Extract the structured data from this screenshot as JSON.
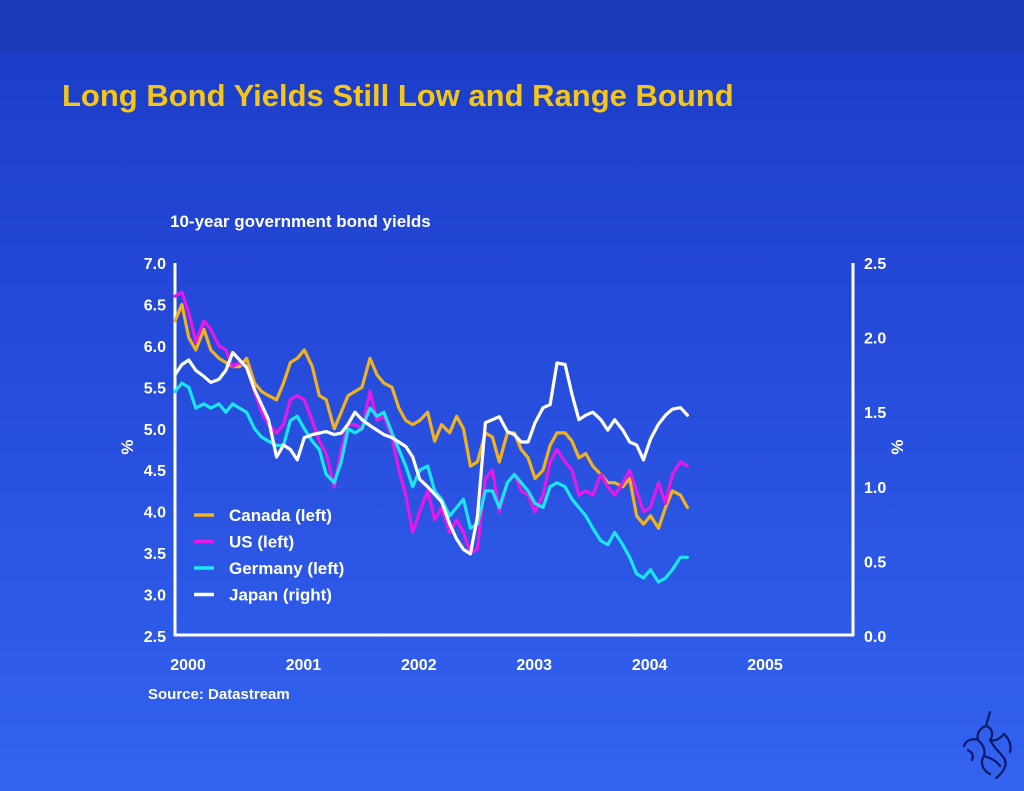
{
  "slide": {
    "title": "Long Bond Yields Still Low and Range Bound"
  },
  "source": "Source: Datastream",
  "colors": {
    "canada": "#f0b21e",
    "us": "#e619e6",
    "germany": "#19e6f0",
    "japan": "#ffffff",
    "title": "#f5c518"
  },
  "icons": {
    "logo": "unicorn-logo-icon"
  },
  "chart_data": {
    "type": "line",
    "title": "10-year government bond yields",
    "left_axis": {
      "label": "%",
      "range": [
        2.5,
        7.0
      ],
      "ticks": [
        "7.0",
        "6.5",
        "6.0",
        "5.5",
        "5.0",
        "4.5",
        "4.0",
        "3.5",
        "3.0",
        "2.5"
      ]
    },
    "right_axis": {
      "label": "%",
      "range": [
        0.0,
        2.5
      ],
      "ticks": [
        "2.5",
        "2.0",
        "1.5",
        "1.0",
        "0.5",
        "0.0"
      ]
    },
    "x_axis": {
      "range": [
        2000.0,
        2005.875
      ],
      "ticks": [
        "2000",
        "2001",
        "2002",
        "2003",
        "2004",
        "2005"
      ]
    },
    "grid": false,
    "legend_position": "bottom-left",
    "series": [
      {
        "name": "Canada (left)",
        "key": "canada",
        "axis": "left",
        "points": [
          [
            2000.0,
            6.3
          ],
          [
            2000.06,
            6.5
          ],
          [
            2000.12,
            6.1
          ],
          [
            2000.18,
            5.95
          ],
          [
            2000.25,
            6.2
          ],
          [
            2000.31,
            5.95
          ],
          [
            2000.38,
            5.85
          ],
          [
            2000.44,
            5.8
          ],
          [
            2000.5,
            5.75
          ],
          [
            2000.56,
            5.75
          ],
          [
            2000.62,
            5.85
          ],
          [
            2000.69,
            5.55
          ],
          [
            2000.75,
            5.45
          ],
          [
            2000.81,
            5.4
          ],
          [
            2000.88,
            5.35
          ],
          [
            2000.94,
            5.55
          ],
          [
            2001.0,
            5.8
          ],
          [
            2001.06,
            5.85
          ],
          [
            2001.12,
            5.95
          ],
          [
            2001.19,
            5.75
          ],
          [
            2001.25,
            5.4
          ],
          [
            2001.31,
            5.35
          ],
          [
            2001.38,
            5.0
          ],
          [
            2001.44,
            5.2
          ],
          [
            2001.5,
            5.4
          ],
          [
            2001.56,
            5.45
          ],
          [
            2001.62,
            5.5
          ],
          [
            2001.69,
            5.85
          ],
          [
            2001.75,
            5.65
          ],
          [
            2001.81,
            5.55
          ],
          [
            2001.88,
            5.5
          ],
          [
            2001.94,
            5.25
          ],
          [
            2002.0,
            5.1
          ],
          [
            2002.06,
            5.05
          ],
          [
            2002.12,
            5.1
          ],
          [
            2002.19,
            5.2
          ],
          [
            2002.25,
            4.85
          ],
          [
            2002.31,
            5.05
          ],
          [
            2002.38,
            4.95
          ],
          [
            2002.44,
            5.15
          ],
          [
            2002.5,
            5.0
          ],
          [
            2002.56,
            4.55
          ],
          [
            2002.62,
            4.6
          ],
          [
            2002.69,
            4.95
          ],
          [
            2002.75,
            4.9
          ],
          [
            2002.81,
            4.6
          ],
          [
            2002.88,
            4.95
          ],
          [
            2002.94,
            4.95
          ],
          [
            2003.0,
            4.75
          ],
          [
            2003.06,
            4.65
          ],
          [
            2003.12,
            4.4
          ],
          [
            2003.19,
            4.5
          ],
          [
            2003.25,
            4.8
          ],
          [
            2003.31,
            4.95
          ],
          [
            2003.38,
            4.95
          ],
          [
            2003.44,
            4.85
          ],
          [
            2003.5,
            4.65
          ],
          [
            2003.56,
            4.7
          ],
          [
            2003.62,
            4.55
          ],
          [
            2003.69,
            4.45
          ],
          [
            2003.75,
            4.35
          ],
          [
            2003.81,
            4.35
          ],
          [
            2003.88,
            4.3
          ],
          [
            2003.94,
            4.4
          ],
          [
            2004.0,
            3.95
          ],
          [
            2004.06,
            3.85
          ],
          [
            2004.12,
            3.95
          ],
          [
            2004.19,
            3.8
          ],
          [
            2004.25,
            4.05
          ],
          [
            2004.31,
            4.25
          ],
          [
            2004.38,
            4.2
          ],
          [
            2004.44,
            4.05
          ]
        ]
      },
      {
        "name": "US (left)",
        "key": "us",
        "axis": "left",
        "points": [
          [
            2000.0,
            6.6
          ],
          [
            2000.06,
            6.65
          ],
          [
            2000.12,
            6.4
          ],
          [
            2000.18,
            6.05
          ],
          [
            2000.25,
            6.3
          ],
          [
            2000.31,
            6.2
          ],
          [
            2000.38,
            6.0
          ],
          [
            2000.44,
            5.95
          ],
          [
            2000.5,
            5.75
          ],
          [
            2000.56,
            5.8
          ],
          [
            2000.62,
            5.75
          ],
          [
            2000.69,
            5.45
          ],
          [
            2000.75,
            5.2
          ],
          [
            2000.81,
            5.05
          ],
          [
            2000.88,
            4.95
          ],
          [
            2000.94,
            5.05
          ],
          [
            2001.0,
            5.35
          ],
          [
            2001.06,
            5.4
          ],
          [
            2001.12,
            5.35
          ],
          [
            2001.19,
            5.1
          ],
          [
            2001.25,
            4.85
          ],
          [
            2001.31,
            4.7
          ],
          [
            2001.38,
            4.3
          ],
          [
            2001.44,
            4.75
          ],
          [
            2001.5,
            5.05
          ],
          [
            2001.56,
            5.05
          ],
          [
            2001.62,
            5.0
          ],
          [
            2001.69,
            5.45
          ],
          [
            2001.75,
            5.1
          ],
          [
            2001.81,
            5.15
          ],
          [
            2001.88,
            4.9
          ],
          [
            2001.94,
            4.5
          ],
          [
            2002.0,
            4.2
          ],
          [
            2002.06,
            3.75
          ],
          [
            2002.12,
            4.0
          ],
          [
            2002.19,
            4.25
          ],
          [
            2002.25,
            3.9
          ],
          [
            2002.31,
            4.05
          ],
          [
            2002.38,
            3.75
          ],
          [
            2002.44,
            3.9
          ],
          [
            2002.5,
            3.75
          ],
          [
            2002.56,
            3.5
          ],
          [
            2002.62,
            3.55
          ],
          [
            2002.69,
            4.4
          ],
          [
            2002.75,
            4.5
          ],
          [
            2002.81,
            4.0
          ],
          [
            2002.88,
            4.35
          ],
          [
            2002.94,
            4.45
          ],
          [
            2003.0,
            4.25
          ],
          [
            2003.06,
            4.2
          ],
          [
            2003.12,
            4.0
          ],
          [
            2003.19,
            4.2
          ],
          [
            2003.25,
            4.6
          ],
          [
            2003.31,
            4.75
          ],
          [
            2003.38,
            4.6
          ],
          [
            2003.44,
            4.5
          ],
          [
            2003.5,
            4.2
          ],
          [
            2003.56,
            4.25
          ],
          [
            2003.62,
            4.2
          ],
          [
            2003.69,
            4.45
          ],
          [
            2003.75,
            4.3
          ],
          [
            2003.81,
            4.2
          ],
          [
            2003.88,
            4.35
          ],
          [
            2003.94,
            4.5
          ],
          [
            2004.0,
            4.25
          ],
          [
            2004.06,
            4.0
          ],
          [
            2004.12,
            4.05
          ],
          [
            2004.19,
            4.35
          ],
          [
            2004.25,
            4.1
          ],
          [
            2004.31,
            4.45
          ],
          [
            2004.38,
            4.6
          ],
          [
            2004.44,
            4.55
          ]
        ]
      },
      {
        "name": "Germany (left)",
        "key": "germany",
        "axis": "left",
        "points": [
          [
            2000.0,
            5.45
          ],
          [
            2000.06,
            5.55
          ],
          [
            2000.12,
            5.5
          ],
          [
            2000.18,
            5.25
          ],
          [
            2000.25,
            5.3
          ],
          [
            2000.31,
            5.25
          ],
          [
            2000.38,
            5.3
          ],
          [
            2000.44,
            5.2
          ],
          [
            2000.5,
            5.3
          ],
          [
            2000.56,
            5.25
          ],
          [
            2000.62,
            5.2
          ],
          [
            2000.69,
            5.0
          ],
          [
            2000.75,
            4.9
          ],
          [
            2000.81,
            4.85
          ],
          [
            2000.88,
            4.8
          ],
          [
            2000.94,
            4.8
          ],
          [
            2001.0,
            5.1
          ],
          [
            2001.06,
            5.15
          ],
          [
            2001.12,
            5.0
          ],
          [
            2001.19,
            4.85
          ],
          [
            2001.25,
            4.75
          ],
          [
            2001.31,
            4.45
          ],
          [
            2001.38,
            4.35
          ],
          [
            2001.44,
            4.6
          ],
          [
            2001.5,
            5.0
          ],
          [
            2001.56,
            4.95
          ],
          [
            2001.62,
            5.0
          ],
          [
            2001.69,
            5.25
          ],
          [
            2001.75,
            5.15
          ],
          [
            2001.81,
            5.2
          ],
          [
            2001.88,
            4.95
          ],
          [
            2001.94,
            4.75
          ],
          [
            2002.0,
            4.55
          ],
          [
            2002.06,
            4.3
          ],
          [
            2002.12,
            4.5
          ],
          [
            2002.19,
            4.55
          ],
          [
            2002.25,
            4.25
          ],
          [
            2002.31,
            4.15
          ],
          [
            2002.38,
            3.95
          ],
          [
            2002.44,
            4.05
          ],
          [
            2002.5,
            4.15
          ],
          [
            2002.56,
            3.8
          ],
          [
            2002.62,
            3.85
          ],
          [
            2002.69,
            4.25
          ],
          [
            2002.75,
            4.25
          ],
          [
            2002.81,
            4.05
          ],
          [
            2002.88,
            4.35
          ],
          [
            2002.94,
            4.45
          ],
          [
            2003.0,
            4.35
          ],
          [
            2003.06,
            4.25
          ],
          [
            2003.12,
            4.1
          ],
          [
            2003.19,
            4.05
          ],
          [
            2003.25,
            4.3
          ],
          [
            2003.31,
            4.35
          ],
          [
            2003.38,
            4.3
          ],
          [
            2003.44,
            4.15
          ],
          [
            2003.5,
            4.05
          ],
          [
            2003.56,
            3.95
          ],
          [
            2003.62,
            3.8
          ],
          [
            2003.69,
            3.65
          ],
          [
            2003.75,
            3.6
          ],
          [
            2003.81,
            3.75
          ],
          [
            2003.88,
            3.6
          ],
          [
            2003.94,
            3.45
          ],
          [
            2004.0,
            3.25
          ],
          [
            2004.06,
            3.2
          ],
          [
            2004.12,
            3.3
          ],
          [
            2004.19,
            3.15
          ],
          [
            2004.25,
            3.2
          ],
          [
            2004.31,
            3.3
          ],
          [
            2004.38,
            3.45
          ],
          [
            2004.44,
            3.45
          ]
        ]
      },
      {
        "name": "Japan (right)",
        "key": "japan",
        "axis": "right",
        "points": [
          [
            2000.0,
            1.75
          ],
          [
            2000.06,
            1.82
          ],
          [
            2000.12,
            1.85
          ],
          [
            2000.18,
            1.78
          ],
          [
            2000.25,
            1.74
          ],
          [
            2000.31,
            1.7
          ],
          [
            2000.38,
            1.72
          ],
          [
            2000.44,
            1.78
          ],
          [
            2000.5,
            1.9
          ],
          [
            2000.56,
            1.85
          ],
          [
            2000.62,
            1.8
          ],
          [
            2000.69,
            1.65
          ],
          [
            2000.75,
            1.55
          ],
          [
            2000.81,
            1.45
          ],
          [
            2000.88,
            1.2
          ],
          [
            2000.94,
            1.28
          ],
          [
            2001.0,
            1.25
          ],
          [
            2001.06,
            1.18
          ],
          [
            2001.12,
            1.33
          ],
          [
            2001.19,
            1.35
          ],
          [
            2001.25,
            1.36
          ],
          [
            2001.31,
            1.37
          ],
          [
            2001.38,
            1.35
          ],
          [
            2001.44,
            1.36
          ],
          [
            2001.5,
            1.42
          ],
          [
            2001.56,
            1.5
          ],
          [
            2001.62,
            1.45
          ],
          [
            2001.69,
            1.41
          ],
          [
            2001.75,
            1.38
          ],
          [
            2001.81,
            1.35
          ],
          [
            2001.88,
            1.33
          ],
          [
            2001.94,
            1.3
          ],
          [
            2002.0,
            1.27
          ],
          [
            2002.06,
            1.2
          ],
          [
            2002.12,
            1.05
          ],
          [
            2002.19,
            1.0
          ],
          [
            2002.25,
            0.95
          ],
          [
            2002.31,
            0.9
          ],
          [
            2002.38,
            0.75
          ],
          [
            2002.44,
            0.65
          ],
          [
            2002.5,
            0.58
          ],
          [
            2002.56,
            0.55
          ],
          [
            2002.62,
            0.8
          ],
          [
            2002.69,
            1.43
          ],
          [
            2002.75,
            1.45
          ],
          [
            2002.81,
            1.47
          ],
          [
            2002.88,
            1.37
          ],
          [
            2002.94,
            1.35
          ],
          [
            2003.0,
            1.3
          ],
          [
            2003.06,
            1.3
          ],
          [
            2003.12,
            1.43
          ],
          [
            2003.19,
            1.53
          ],
          [
            2003.25,
            1.55
          ],
          [
            2003.31,
            1.83
          ],
          [
            2003.38,
            1.82
          ],
          [
            2003.44,
            1.62
          ],
          [
            2003.5,
            1.45
          ],
          [
            2003.56,
            1.48
          ],
          [
            2003.62,
            1.5
          ],
          [
            2003.69,
            1.45
          ],
          [
            2003.75,
            1.38
          ],
          [
            2003.81,
            1.45
          ],
          [
            2003.88,
            1.38
          ],
          [
            2003.94,
            1.3
          ],
          [
            2004.0,
            1.28
          ],
          [
            2004.06,
            1.18
          ],
          [
            2004.12,
            1.32
          ],
          [
            2004.19,
            1.42
          ],
          [
            2004.25,
            1.48
          ],
          [
            2004.31,
            1.52
          ],
          [
            2004.38,
            1.53
          ],
          [
            2004.44,
            1.48
          ]
        ]
      }
    ]
  }
}
